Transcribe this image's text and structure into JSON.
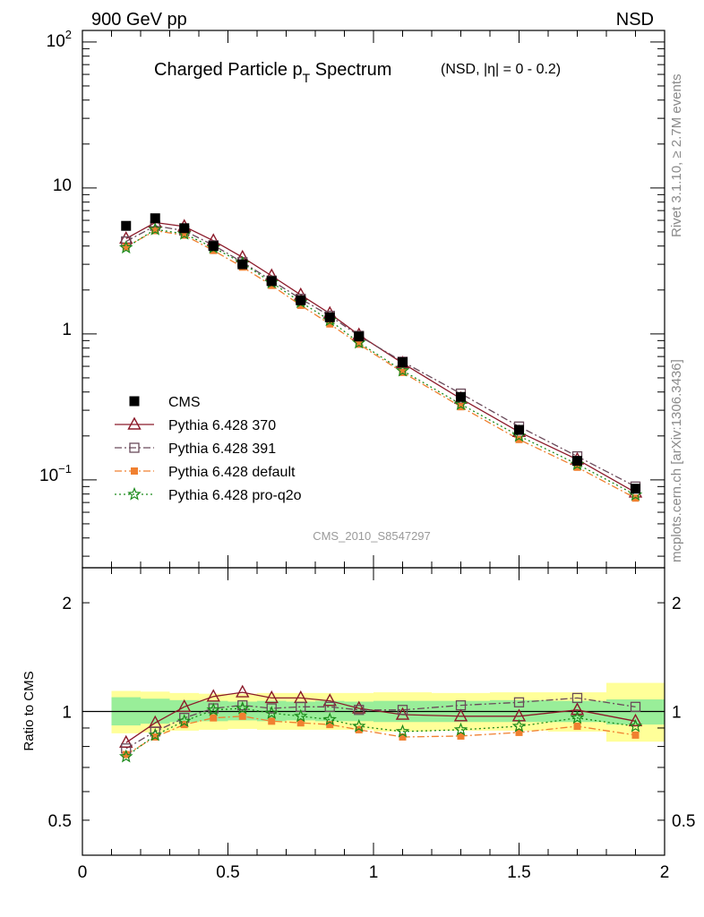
{
  "header": {
    "left": "900 GeV pp",
    "right": "NSD"
  },
  "side_labels": {
    "top": "Rivet 3.1.10, ≥ 2.7M events",
    "bottom": "mcplots.cern.ch [arXiv:1306.3436]"
  },
  "chart_data": {
    "type": "line",
    "title": {
      "main_prefix": "Charged Particle p",
      "main_sub": "T",
      "main_suffix": " Spectrum",
      "extra": "(NSD, |η| =   0 - 0.2)"
    },
    "watermark": "CMS_2010_S8547297",
    "xlim": [
      0,
      2
    ],
    "x_ticks": [
      "0",
      "0.5",
      "1",
      "1.5",
      "2"
    ],
    "main": {
      "yscale": "log",
      "ylim": [
        0.025,
        120
      ],
      "y_tick_labels": {
        "t100": "10",
        "t100_exp": "2",
        "t10": "10",
        "t1": "1",
        "t01": "10",
        "t01_exp": "−1"
      }
    },
    "ratio": {
      "yscale": "log",
      "ylim": [
        0.4,
        2.5
      ],
      "ylabel": "Ratio to CMS",
      "y_tick_labels": [
        "2",
        "1",
        "0.5"
      ],
      "y_tick_values": [
        2,
        1,
        0.5
      ],
      "band_inner": [
        [
          0.1,
          0.2,
          0.915,
          1.095
        ],
        [
          0.2,
          0.3,
          0.925,
          1.085
        ],
        [
          0.3,
          0.4,
          0.935,
          1.075
        ],
        [
          0.4,
          0.5,
          0.94,
          1.07
        ],
        [
          0.5,
          0.6,
          0.945,
          1.065
        ],
        [
          0.6,
          0.7,
          0.94,
          1.07
        ],
        [
          0.7,
          0.8,
          0.945,
          1.065
        ],
        [
          0.8,
          0.9,
          0.94,
          1.07
        ],
        [
          0.9,
          1.0,
          0.94,
          1.065
        ],
        [
          1.0,
          1.2,
          0.935,
          1.07
        ],
        [
          1.2,
          1.4,
          0.935,
          1.07
        ],
        [
          1.4,
          1.6,
          0.935,
          1.075
        ],
        [
          1.6,
          1.8,
          0.935,
          1.07
        ],
        [
          1.8,
          2.0,
          0.92,
          1.08
        ]
      ],
      "band_outer": [
        [
          0.1,
          0.2,
          0.87,
          1.14
        ],
        [
          0.2,
          0.3,
          0.875,
          1.135
        ],
        [
          0.3,
          0.4,
          0.885,
          1.125
        ],
        [
          0.4,
          0.5,
          0.89,
          1.12
        ],
        [
          0.5,
          0.6,
          0.895,
          1.12
        ],
        [
          0.6,
          0.7,
          0.89,
          1.125
        ],
        [
          0.7,
          0.8,
          0.89,
          1.125
        ],
        [
          0.8,
          0.9,
          0.89,
          1.125
        ],
        [
          0.9,
          1.0,
          0.89,
          1.125
        ],
        [
          1.0,
          1.2,
          0.88,
          1.13
        ],
        [
          1.2,
          1.4,
          0.885,
          1.125
        ],
        [
          1.4,
          1.6,
          0.885,
          1.13
        ],
        [
          1.6,
          1.8,
          0.88,
          1.13
        ],
        [
          1.8,
          2.0,
          0.825,
          1.2
        ]
      ]
    },
    "x": [
      0.15,
      0.25,
      0.35,
      0.45,
      0.55,
      0.65,
      0.75,
      0.85,
      0.95,
      1.1,
      1.3,
      1.5,
      1.7,
      1.9
    ],
    "series": [
      {
        "name": "CMS",
        "marker": "square",
        "color": "#000000",
        "dash": "",
        "values": [
          5.5,
          6.2,
          5.3,
          4.0,
          3.0,
          2.3,
          1.7,
          1.3,
          0.96,
          0.64,
          0.37,
          0.22,
          0.135,
          0.087
        ]
      },
      {
        "name": "Pythia 6.428 370",
        "marker": "triangle",
        "color": "#8b1a2a",
        "dash": "",
        "values": [
          4.5,
          5.8,
          5.45,
          4.35,
          3.35,
          2.5,
          1.85,
          1.38,
          0.985,
          0.63,
          0.36,
          0.213,
          0.138,
          0.082
        ]
      },
      {
        "name": "Pythia 6.428 391",
        "marker": "open-square",
        "color": "#6a4a5a",
        "dash": "8,3,2,3",
        "values": [
          4.3,
          5.5,
          5.1,
          4.05,
          3.1,
          2.32,
          1.74,
          1.33,
          0.97,
          0.645,
          0.39,
          0.232,
          0.145,
          0.09
        ]
      },
      {
        "name": "Pythia 6.428 default",
        "marker": "filled-square",
        "color": "#f08030",
        "dash": "8,3,2,3",
        "values": [
          3.95,
          5.1,
          4.75,
          3.73,
          2.87,
          2.15,
          1.57,
          1.17,
          0.85,
          0.545,
          0.317,
          0.189,
          0.122,
          0.075
        ]
      },
      {
        "name": "Pythia 6.428 pro-q2o",
        "marker": "star",
        "color": "#1a8a1a",
        "dash": "2,3",
        "values": [
          3.9,
          5.2,
          4.85,
          3.9,
          3.05,
          2.25,
          1.65,
          1.24,
          0.87,
          0.56,
          0.33,
          0.2,
          0.128,
          0.079
        ]
      }
    ],
    "ratio_series": [
      {
        "name": "Pythia 6.428 370",
        "values": [
          0.82,
          0.93,
          1.03,
          1.1,
          1.13,
          1.09,
          1.09,
          1.07,
          1.02,
          0.98,
          0.97,
          0.97,
          1.01,
          0.94
        ]
      },
      {
        "name": "Pythia 6.428 391",
        "values": [
          0.79,
          0.88,
          0.96,
          1.02,
          1.04,
          1.02,
          1.03,
          1.03,
          1.01,
          1.01,
          1.04,
          1.06,
          1.09,
          1.03
        ]
      },
      {
        "name": "Pythia 6.428 default",
        "values": [
          0.76,
          0.85,
          0.92,
          0.96,
          0.97,
          0.94,
          0.93,
          0.92,
          0.89,
          0.85,
          0.855,
          0.875,
          0.91,
          0.86
        ]
      },
      {
        "name": "Pythia 6.428 pro-q2o",
        "values": [
          0.75,
          0.86,
          0.94,
          1.01,
          1.02,
          0.99,
          0.97,
          0.95,
          0.91,
          0.88,
          0.89,
          0.91,
          0.96,
          0.91
        ]
      }
    ],
    "legend": {
      "placement": "lower-left"
    }
  }
}
